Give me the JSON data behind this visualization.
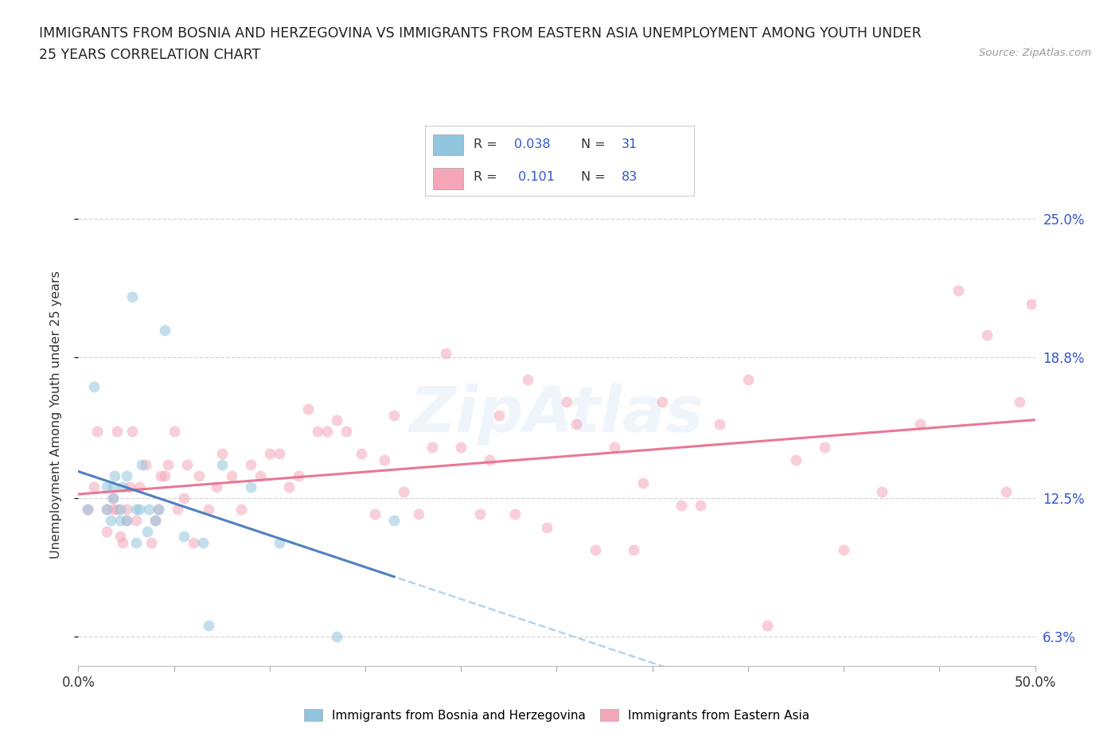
{
  "title_line1": "IMMIGRANTS FROM BOSNIA AND HERZEGOVINA VS IMMIGRANTS FROM EASTERN ASIA UNEMPLOYMENT AMONG YOUTH UNDER",
  "title_line2": "25 YEARS CORRELATION CHART",
  "source": "Source: ZipAtlas.com",
  "ylabel": "Unemployment Among Youth under 25 years",
  "xlim": [
    0.0,
    0.5
  ],
  "ylim": [
    0.05,
    0.275
  ],
  "yticks": [
    0.063,
    0.125,
    0.188,
    0.25
  ],
  "ytick_labels": [
    "6.3%",
    "12.5%",
    "18.8%",
    "25.0%"
  ],
  "xticks": [
    0.0,
    0.05,
    0.1,
    0.15,
    0.2,
    0.25,
    0.3,
    0.35,
    0.4,
    0.45,
    0.5
  ],
  "xtick_labels": [
    "0.0%",
    "",
    "",
    "",
    "",
    "",
    "",
    "",
    "",
    "",
    "50.0%"
  ],
  "blue_color": "#92C5DE",
  "pink_color": "#F4A6B8",
  "blue_line_color": "#AACDE8",
  "pink_line_color": "#E87090",
  "blue_solid_color": "#4477BB",
  "legend_R1": "0.038",
  "legend_N1": "31",
  "legend_R2": "0.101",
  "legend_N2": "83",
  "label1": "Immigrants from Bosnia and Herzegovina",
  "label2": "Immigrants from Eastern Asia",
  "blue_scatter_x": [
    0.005,
    0.008,
    0.015,
    0.015,
    0.017,
    0.018,
    0.018,
    0.019,
    0.022,
    0.022,
    0.023,
    0.025,
    0.025,
    0.028,
    0.03,
    0.03,
    0.032,
    0.033,
    0.036,
    0.037,
    0.04,
    0.042,
    0.045,
    0.055,
    0.065,
    0.068,
    0.075,
    0.09,
    0.105,
    0.135,
    0.165
  ],
  "blue_scatter_y": [
    0.12,
    0.175,
    0.12,
    0.13,
    0.115,
    0.125,
    0.13,
    0.135,
    0.115,
    0.12,
    0.13,
    0.115,
    0.135,
    0.215,
    0.105,
    0.12,
    0.12,
    0.14,
    0.11,
    0.12,
    0.115,
    0.12,
    0.2,
    0.108,
    0.105,
    0.068,
    0.14,
    0.13,
    0.105,
    0.063,
    0.115
  ],
  "pink_scatter_x": [
    0.005,
    0.008,
    0.01,
    0.015,
    0.015,
    0.018,
    0.018,
    0.02,
    0.02,
    0.022,
    0.023,
    0.025,
    0.025,
    0.027,
    0.028,
    0.03,
    0.032,
    0.035,
    0.038,
    0.04,
    0.042,
    0.043,
    0.045,
    0.047,
    0.05,
    0.052,
    0.055,
    0.057,
    0.06,
    0.063,
    0.068,
    0.072,
    0.075,
    0.08,
    0.085,
    0.09,
    0.095,
    0.1,
    0.105,
    0.11,
    0.115,
    0.12,
    0.125,
    0.13,
    0.135,
    0.14,
    0.148,
    0.155,
    0.16,
    0.165,
    0.17,
    0.178,
    0.185,
    0.192,
    0.2,
    0.21,
    0.215,
    0.22,
    0.228,
    0.235,
    0.245,
    0.255,
    0.26,
    0.27,
    0.28,
    0.29,
    0.295,
    0.305,
    0.315,
    0.325,
    0.335,
    0.35,
    0.36,
    0.375,
    0.39,
    0.4,
    0.42,
    0.44,
    0.46,
    0.475,
    0.485,
    0.492,
    0.498
  ],
  "pink_scatter_y": [
    0.12,
    0.13,
    0.155,
    0.11,
    0.12,
    0.12,
    0.125,
    0.12,
    0.155,
    0.108,
    0.105,
    0.115,
    0.12,
    0.13,
    0.155,
    0.115,
    0.13,
    0.14,
    0.105,
    0.115,
    0.12,
    0.135,
    0.135,
    0.14,
    0.155,
    0.12,
    0.125,
    0.14,
    0.105,
    0.135,
    0.12,
    0.13,
    0.145,
    0.135,
    0.12,
    0.14,
    0.135,
    0.145,
    0.145,
    0.13,
    0.135,
    0.165,
    0.155,
    0.155,
    0.16,
    0.155,
    0.145,
    0.118,
    0.142,
    0.162,
    0.128,
    0.118,
    0.148,
    0.19,
    0.148,
    0.118,
    0.142,
    0.162,
    0.118,
    0.178,
    0.112,
    0.168,
    0.158,
    0.102,
    0.148,
    0.102,
    0.132,
    0.168,
    0.122,
    0.122,
    0.158,
    0.178,
    0.068,
    0.142,
    0.148,
    0.102,
    0.128,
    0.158,
    0.218,
    0.198,
    0.128,
    0.168,
    0.212
  ],
  "watermark": "ZipAtlas",
  "background_color": "#ffffff",
  "grid_color": "#cccccc",
  "title_color": "#222222",
  "right_axis_color": "#3355CC",
  "legend_value_color": "#3355CC",
  "dot_size": 100,
  "dot_alpha": 0.55
}
